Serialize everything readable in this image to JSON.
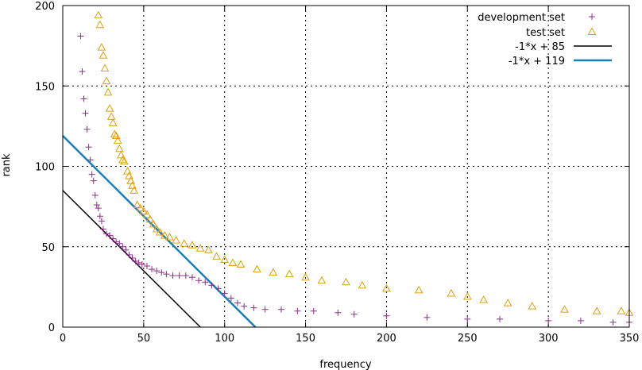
{
  "chart_data": {
    "type": "scatter",
    "title": "",
    "xlabel": "frequency",
    "ylabel": "rank",
    "xlim": [
      0,
      350
    ],
    "ylim": [
      0,
      200
    ],
    "xticks": [
      0,
      50,
      100,
      150,
      200,
      250,
      300,
      350
    ],
    "yticks": [
      0,
      50,
      100,
      150,
      200
    ],
    "grid": true,
    "legend_position": "top-right",
    "series": [
      {
        "name": "development set",
        "kind": "points",
        "marker": "plus",
        "color": "#8e2c8c",
        "points": [
          [
            11,
            181
          ],
          [
            12,
            159
          ],
          [
            13,
            142
          ],
          [
            14,
            133
          ],
          [
            15,
            123
          ],
          [
            16,
            112
          ],
          [
            17,
            104
          ],
          [
            18,
            95
          ],
          [
            19,
            91
          ],
          [
            20,
            82
          ],
          [
            21,
            76
          ],
          [
            22,
            74
          ],
          [
            23,
            69
          ],
          [
            24,
            66
          ],
          [
            25,
            61
          ],
          [
            27,
            58
          ],
          [
            29,
            57
          ],
          [
            31,
            55
          ],
          [
            33,
            53
          ],
          [
            35,
            52
          ],
          [
            37,
            50
          ],
          [
            39,
            48
          ],
          [
            41,
            45
          ],
          [
            43,
            43
          ],
          [
            45,
            41
          ],
          [
            47,
            40
          ],
          [
            49,
            39
          ],
          [
            52,
            38
          ],
          [
            55,
            36
          ],
          [
            58,
            35
          ],
          [
            61,
            34
          ],
          [
            64,
            33
          ],
          [
            68,
            32
          ],
          [
            72,
            32
          ],
          [
            76,
            32
          ],
          [
            80,
            31
          ],
          [
            84,
            29
          ],
          [
            88,
            28
          ],
          [
            92,
            26
          ],
          [
            96,
            24
          ],
          [
            100,
            21
          ],
          [
            104,
            18
          ],
          [
            108,
            15
          ],
          [
            112,
            13
          ],
          [
            118,
            12
          ],
          [
            125,
            11
          ],
          [
            135,
            11
          ],
          [
            145,
            10
          ],
          [
            155,
            10
          ],
          [
            170,
            9
          ],
          [
            180,
            8
          ],
          [
            200,
            7
          ],
          [
            225,
            6
          ],
          [
            250,
            5
          ],
          [
            270,
            5
          ],
          [
            300,
            4
          ],
          [
            320,
            4
          ],
          [
            340,
            3
          ],
          [
            350,
            3
          ]
        ]
      },
      {
        "name": "test set",
        "kind": "points",
        "marker": "triangle",
        "color": "#e0a010",
        "points": [
          [
            22,
            194
          ],
          [
            23,
            188
          ],
          [
            24,
            174
          ],
          [
            25,
            169
          ],
          [
            26,
            161
          ],
          [
            27,
            153
          ],
          [
            28,
            146
          ],
          [
            29,
            136
          ],
          [
            30,
            131
          ],
          [
            31,
            127
          ],
          [
            32,
            120
          ],
          [
            33,
            119
          ],
          [
            34,
            116
          ],
          [
            35,
            111
          ],
          [
            36,
            107
          ],
          [
            37,
            104
          ],
          [
            38,
            103
          ],
          [
            40,
            97
          ],
          [
            41,
            94
          ],
          [
            42,
            91
          ],
          [
            43,
            88
          ],
          [
            44,
            85
          ],
          [
            46,
            76
          ],
          [
            48,
            74
          ],
          [
            50,
            72
          ],
          [
            52,
            70
          ],
          [
            54,
            67
          ],
          [
            56,
            64
          ],
          [
            58,
            61
          ],
          [
            60,
            59
          ],
          [
            63,
            57
          ],
          [
            66,
            56
          ],
          [
            70,
            54
          ],
          [
            75,
            52
          ],
          [
            80,
            51
          ],
          [
            85,
            49
          ],
          [
            90,
            48
          ],
          [
            95,
            44
          ],
          [
            100,
            42
          ],
          [
            105,
            40
          ],
          [
            110,
            39
          ],
          [
            120,
            36
          ],
          [
            130,
            34
          ],
          [
            140,
            33
          ],
          [
            150,
            31
          ],
          [
            160,
            29
          ],
          [
            175,
            28
          ],
          [
            185,
            26
          ],
          [
            200,
            24
          ],
          [
            220,
            23
          ],
          [
            240,
            21
          ],
          [
            250,
            19
          ],
          [
            260,
            17
          ],
          [
            275,
            15
          ],
          [
            290,
            13
          ],
          [
            310,
            11
          ],
          [
            330,
            10
          ],
          [
            345,
            10
          ],
          [
            350,
            9
          ]
        ]
      },
      {
        "name": "-1*x + 85",
        "kind": "line",
        "slope": -1,
        "intercept": 85,
        "color": "#000000"
      },
      {
        "name": "-1*x + 119",
        "kind": "line",
        "slope": -1,
        "intercept": 119,
        "color": "#1a7fb5"
      }
    ]
  }
}
